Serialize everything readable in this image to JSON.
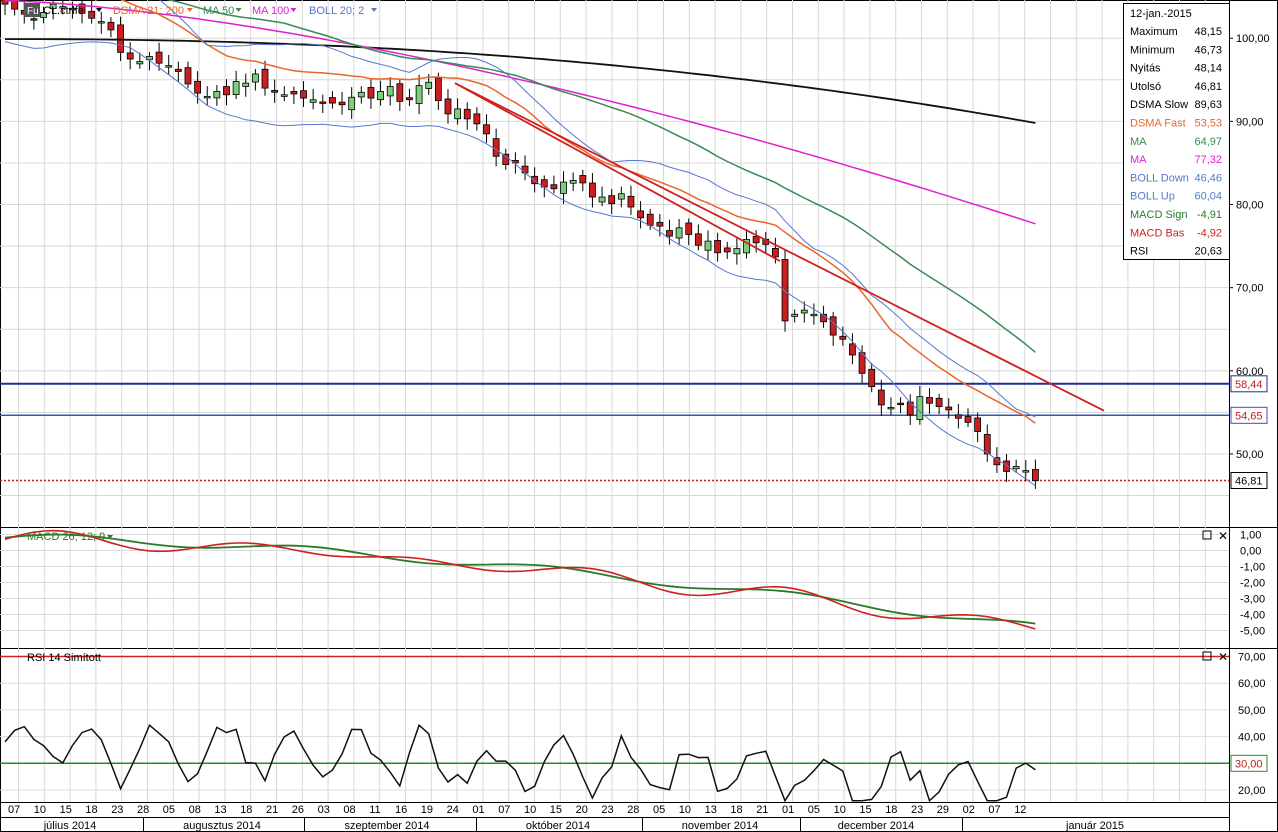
{
  "toolbar": {
    "symbol_badge": "Fu",
    "symbol": "CL.ctrlfe",
    "indicators": [
      {
        "label": "DSMA 21; 200",
        "color": "#e8662a"
      },
      {
        "label": "MA 50",
        "color": "#3a8a55"
      },
      {
        "label": "MA 100",
        "color": "#e020d0"
      },
      {
        "label": "BOLL 20; 2",
        "color": "#5577cc"
      }
    ]
  },
  "info_box": {
    "date": "12-jan.-2015",
    "rows": [
      {
        "label": "Maximum",
        "value": "48,15",
        "color": "#000000"
      },
      {
        "label": "Minimum",
        "value": "46,73",
        "color": "#000000"
      },
      {
        "label": "Nyitás",
        "value": "48,14",
        "color": "#000000"
      },
      {
        "label": "Utolsó",
        "value": "46,81",
        "color": "#000000"
      },
      {
        "label": "DSMA Slow",
        "value": "89,63",
        "color": "#000000"
      },
      {
        "label": "DSMA Fast",
        "value": "53,53",
        "color": "#e8662a"
      },
      {
        "label": "MA",
        "value": "64,97",
        "color": "#3a8a55"
      },
      {
        "label": "MA",
        "value": "77,32",
        "color": "#e020d0"
      },
      {
        "label": "BOLL Down",
        "value": "46,46",
        "color": "#5577cc"
      },
      {
        "label": "BOLL Up",
        "value": "60,04",
        "color": "#5577cc"
      },
      {
        "label": "MACD Sign",
        "value": "-4,91",
        "color": "#2a7a2a"
      },
      {
        "label": "MACD Bas",
        "value": "-4,92",
        "color": "#d02020"
      },
      {
        "label": "RSI",
        "value": "20,63",
        "color": "#000000"
      }
    ]
  },
  "price_axis": [
    "100,00",
    "90,00",
    "80,00",
    "70,00",
    "60,00",
    "50,00"
  ],
  "price_levels": [
    {
      "label": "58,44",
      "value": 58.44,
      "color": "#1a2f9e"
    },
    {
      "label": "54,65",
      "value": 54.65,
      "color": "#3355bb"
    },
    {
      "label": "46,81",
      "value": 46.81,
      "color": "#c02020"
    }
  ],
  "macd_panel": {
    "title": "MACD 26; 12; 9",
    "axis": [
      "1,00",
      "0,00",
      "-1,00",
      "-2,00",
      "-3,00",
      "-4,00",
      "-5,00"
    ]
  },
  "rsi_panel": {
    "title": "RSI 14 Simított",
    "axis": [
      "70,00",
      "60,00",
      "50,00",
      "40,00",
      "30,00",
      "20,00"
    ],
    "levels": [
      {
        "label": "30,00",
        "value": 30
      }
    ]
  },
  "x_axis": {
    "day_ticks": [
      "07",
      "10",
      "15",
      "18",
      "23",
      "28",
      "05",
      "08",
      "13",
      "18",
      "21",
      "26",
      "03",
      "08",
      "11",
      "16",
      "19",
      "24",
      "01",
      "07",
      "10",
      "15",
      "20",
      "23",
      "28",
      "05",
      "10",
      "13",
      "18",
      "21",
      "01",
      "05",
      "10",
      "15",
      "18",
      "23",
      "29",
      "02",
      "07",
      "12"
    ],
    "months": [
      "július 2014",
      "augusztus 2014",
      "szeptember 2014",
      "október 2014",
      "november 2014",
      "december 2014",
      "január 2015"
    ]
  },
  "chart_data": {
    "type": "candlestick",
    "title": "CL.ctrlfe",
    "y_range": [
      42,
      105
    ],
    "ohlc_start": "2014-07-07",
    "ohlc_end": "2015-01-12",
    "last": {
      "date": "2015-01-12",
      "open": 48.14,
      "high": 48.15,
      "low": 46.73,
      "close": 46.81
    },
    "closes_approx": [
      104.1,
      103.5,
      102.9,
      102.2,
      103.1,
      104.1,
      103.8,
      103.6,
      103.0,
      102.4,
      102.0,
      101.0,
      98.3,
      97.5,
      97.2,
      97.8,
      97.0,
      96.7,
      96.0,
      94.5,
      93.4,
      93.0,
      93.6,
      93.2,
      94.8,
      94.6,
      95.7,
      94.0,
      93.5,
      93.2,
      93.3,
      92.8,
      92.6,
      92.3,
      92.2,
      92.0,
      92.9,
      93.5,
      92.8,
      93.6,
      94.2,
      92.4,
      92.6,
      94.3,
      94.7,
      92.5,
      90.9,
      91.5,
      90.3,
      89.7,
      88.5,
      85.8,
      84.8,
      85.0,
      83.8,
      82.5,
      82.1,
      81.9,
      82.7,
      82.9,
      82.6,
      80.9,
      80.9,
      80.1,
      81.3,
      79.7,
      78.4,
      77.5,
      77.4,
      76.2,
      77.2,
      76.4,
      75.1,
      75.6,
      74.2,
      74.3,
      74.7,
      75.8,
      75.4,
      75.2,
      73.7,
      66.0,
      66.8,
      67.3,
      66.8,
      65.9,
      64.3,
      63.8,
      61.9,
      59.7,
      58.1,
      55.9,
      55.6,
      56.0,
      54.7,
      56.9,
      56.1,
      55.7,
      55.3,
      54.3,
      53.8,
      52.7,
      50.0,
      48.7,
      47.9,
      48.5,
      48.0,
      46.8
    ],
    "series": [
      {
        "name": "DSMA Slow",
        "last": 89.63
      },
      {
        "name": "DSMA Fast",
        "last": 53.53
      },
      {
        "name": "MA 50",
        "last": 64.97
      },
      {
        "name": "MA 100",
        "last": 77.32
      },
      {
        "name": "BOLL Down",
        "last": 46.46
      },
      {
        "name": "BOLL Up",
        "last": 60.04
      },
      {
        "name": "MACD Sign",
        "last": -4.91
      },
      {
        "name": "MACD Bas",
        "last": -4.92
      },
      {
        "name": "RSI",
        "last": 20.63
      }
    ],
    "horizontal_levels": [
      58.44,
      54.65,
      46.81
    ],
    "rsi_levels": [
      70,
      30
    ]
  }
}
